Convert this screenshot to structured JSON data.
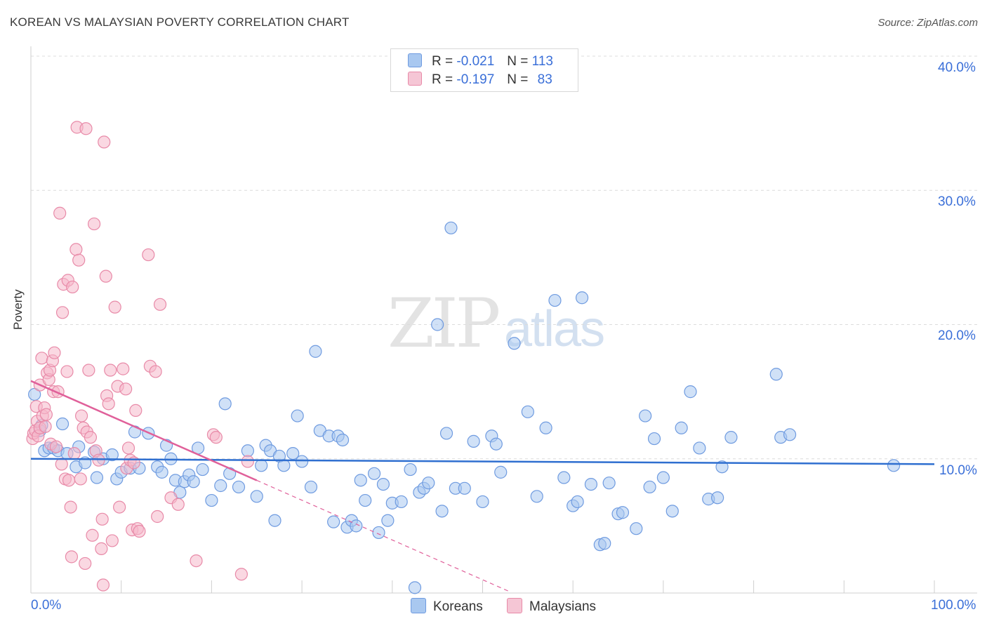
{
  "title": "KOREAN VS MALAYSIAN POVERTY CORRELATION CHART",
  "source": "Source: ZipAtlas.com",
  "watermark": {
    "part1": "ZIP",
    "part2": "atlas"
  },
  "legend_top": [
    {
      "r_label": "R =",
      "r_value": "-0.021",
      "n_label": "N =",
      "n_value": "113"
    },
    {
      "r_label": "R =",
      "r_value": "-0.197",
      "n_label": "N =",
      "n_value": "83"
    }
  ],
  "legend_bottom": {
    "koreans": "Koreans",
    "malaysians": "Malaysians"
  },
  "colors": {
    "koreans_fill": "#a9c8f0",
    "koreans_stroke": "#6f9be0",
    "koreans_line": "#2f6fd0",
    "malaysians_fill": "#f5b8cb",
    "malaysians_stroke": "#e88aa8",
    "malaysians_line": "#e0609a",
    "axis_text": "#3a6fd8"
  },
  "chart_data": {
    "type": "scatter",
    "title": "KOREAN VS MALAYSIAN POVERTY CORRELATION CHART",
    "xlabel": "",
    "ylabel": "Poverty",
    "xlim": [
      0,
      100
    ],
    "ylim": [
      0,
      40
    ],
    "x_tick_labels": {
      "min": "0.0%",
      "max": "100.0%"
    },
    "y_tick_labels": [
      "10.0%",
      "20.0%",
      "30.0%",
      "40.0%"
    ],
    "y_ticks": [
      10,
      20,
      30,
      40
    ],
    "grid": true,
    "series": [
      {
        "name": "Koreans",
        "r": -0.021,
        "n": 113,
        "trend": {
          "x0": 0,
          "y0": 10.0,
          "x1": 100,
          "y1": 9.6,
          "dashed_from": null
        },
        "points": [
          [
            0.4,
            14.8
          ],
          [
            1.0,
            12.1
          ],
          [
            1.2,
            12.5
          ],
          [
            1.5,
            10.6
          ],
          [
            2.0,
            10.8
          ],
          [
            2.5,
            10.8
          ],
          [
            3.0,
            10.6
          ],
          [
            3.5,
            12.6
          ],
          [
            4.0,
            10.4
          ],
          [
            5.0,
            9.4
          ],
          [
            5.3,
            10.9
          ],
          [
            6.0,
            9.7
          ],
          [
            7.0,
            10.5
          ],
          [
            7.3,
            8.6
          ],
          [
            8.0,
            10.0
          ],
          [
            9.0,
            10.3
          ],
          [
            9.5,
            8.5
          ],
          [
            10.0,
            9.0
          ],
          [
            11.0,
            9.3
          ],
          [
            11.5,
            12.0
          ],
          [
            12.0,
            9.3
          ],
          [
            13.0,
            11.9
          ],
          [
            14.0,
            9.4
          ],
          [
            14.5,
            9.0
          ],
          [
            15.0,
            11.0
          ],
          [
            15.5,
            10.0
          ],
          [
            16.0,
            8.4
          ],
          [
            16.5,
            7.5
          ],
          [
            17.0,
            8.3
          ],
          [
            17.5,
            8.8
          ],
          [
            18.0,
            8.3
          ],
          [
            18.5,
            10.8
          ],
          [
            19.0,
            9.2
          ],
          [
            20.0,
            6.9
          ],
          [
            21.0,
            8.0
          ],
          [
            21.5,
            14.1
          ],
          [
            22.0,
            8.9
          ],
          [
            23.0,
            7.9
          ],
          [
            24.0,
            10.6
          ],
          [
            25.0,
            7.2
          ],
          [
            25.5,
            9.5
          ],
          [
            26.0,
            11.0
          ],
          [
            26.5,
            10.6
          ],
          [
            27.0,
            5.4
          ],
          [
            27.5,
            10.2
          ],
          [
            28.0,
            9.5
          ],
          [
            29.0,
            10.4
          ],
          [
            29.5,
            13.2
          ],
          [
            30.0,
            9.8
          ],
          [
            31.0,
            7.9
          ],
          [
            31.5,
            18.0
          ],
          [
            32.0,
            12.1
          ],
          [
            33.0,
            11.7
          ],
          [
            33.5,
            5.3
          ],
          [
            34.0,
            11.7
          ],
          [
            34.5,
            11.4
          ],
          [
            35.0,
            4.9
          ],
          [
            35.5,
            5.4
          ],
          [
            36.0,
            5.0
          ],
          [
            36.5,
            8.4
          ],
          [
            37.0,
            6.9
          ],
          [
            38.0,
            8.9
          ],
          [
            38.5,
            4.5
          ],
          [
            39.0,
            8.1
          ],
          [
            39.5,
            5.4
          ],
          [
            40.0,
            6.7
          ],
          [
            41.0,
            6.8
          ],
          [
            42.0,
            9.2
          ],
          [
            42.5,
            0.4
          ],
          [
            43.0,
            7.5
          ],
          [
            43.5,
            7.8
          ],
          [
            44.0,
            8.2
          ],
          [
            45.0,
            20.0
          ],
          [
            45.5,
            6.1
          ],
          [
            46.0,
            11.9
          ],
          [
            46.5,
            27.2
          ],
          [
            47.0,
            7.8
          ],
          [
            48.0,
            7.8
          ],
          [
            49.0,
            11.3
          ],
          [
            50.0,
            6.8
          ],
          [
            51.0,
            11.7
          ],
          [
            51.5,
            11.1
          ],
          [
            52.0,
            9.0
          ],
          [
            53.5,
            18.6
          ],
          [
            55.0,
            13.5
          ],
          [
            56.0,
            7.2
          ],
          [
            57.0,
            12.3
          ],
          [
            58.0,
            21.8
          ],
          [
            59.0,
            8.6
          ],
          [
            60.0,
            6.5
          ],
          [
            60.5,
            6.8
          ],
          [
            61.0,
            22.0
          ],
          [
            62.0,
            8.1
          ],
          [
            63.0,
            3.6
          ],
          [
            63.5,
            3.7
          ],
          [
            64.0,
            8.2
          ],
          [
            65.0,
            5.9
          ],
          [
            65.5,
            6.0
          ],
          [
            67.0,
            4.8
          ],
          [
            68.0,
            13.2
          ],
          [
            68.5,
            7.9
          ],
          [
            69.0,
            11.5
          ],
          [
            70.0,
            8.6
          ],
          [
            71.0,
            6.1
          ],
          [
            72.0,
            12.3
          ],
          [
            73.0,
            15.0
          ],
          [
            74.0,
            10.8
          ],
          [
            75.0,
            7.0
          ],
          [
            76.0,
            7.1
          ],
          [
            76.5,
            9.4
          ],
          [
            77.5,
            11.6
          ],
          [
            82.5,
            16.3
          ],
          [
            83.0,
            11.6
          ],
          [
            84.0,
            11.8
          ],
          [
            95.5,
            9.5
          ]
        ]
      },
      {
        "name": "Malaysians",
        "r": -0.197,
        "n": 83,
        "trend": {
          "x0": 0,
          "y0": 15.8,
          "x1": 53,
          "y1": 0.1,
          "solid_until": 25
        },
        "points": [
          [
            0.2,
            11.5
          ],
          [
            0.3,
            11.9
          ],
          [
            0.5,
            12.1
          ],
          [
            0.6,
            13.9
          ],
          [
            0.7,
            12.8
          ],
          [
            0.8,
            11.7
          ],
          [
            1.0,
            15.5
          ],
          [
            1.0,
            12.3
          ],
          [
            1.2,
            17.5
          ],
          [
            1.3,
            13.2
          ],
          [
            1.5,
            13.8
          ],
          [
            1.6,
            12.4
          ],
          [
            1.7,
            13.3
          ],
          [
            1.8,
            16.4
          ],
          [
            2.0,
            15.9
          ],
          [
            2.1,
            16.6
          ],
          [
            2.2,
            11.1
          ],
          [
            2.4,
            17.3
          ],
          [
            2.5,
            15.0
          ],
          [
            2.6,
            17.9
          ],
          [
            2.8,
            10.9
          ],
          [
            3.0,
            15.0
          ],
          [
            3.2,
            28.3
          ],
          [
            3.4,
            9.6
          ],
          [
            3.5,
            20.9
          ],
          [
            3.6,
            23.0
          ],
          [
            3.8,
            8.5
          ],
          [
            4.0,
            16.5
          ],
          [
            4.1,
            23.3
          ],
          [
            4.2,
            8.4
          ],
          [
            4.4,
            6.4
          ],
          [
            4.5,
            2.7
          ],
          [
            4.6,
            22.8
          ],
          [
            4.8,
            10.4
          ],
          [
            5.0,
            25.6
          ],
          [
            5.1,
            34.7
          ],
          [
            5.3,
            24.8
          ],
          [
            5.5,
            8.5
          ],
          [
            5.6,
            13.2
          ],
          [
            5.8,
            12.3
          ],
          [
            6.0,
            2.2
          ],
          [
            6.1,
            34.6
          ],
          [
            6.2,
            12.0
          ],
          [
            6.4,
            16.6
          ],
          [
            6.6,
            11.6
          ],
          [
            6.8,
            4.3
          ],
          [
            7.0,
            27.5
          ],
          [
            7.2,
            10.6
          ],
          [
            7.5,
            9.9
          ],
          [
            7.8,
            3.3
          ],
          [
            7.9,
            5.5
          ],
          [
            8.0,
            0.6
          ],
          [
            8.1,
            33.6
          ],
          [
            8.3,
            23.6
          ],
          [
            8.4,
            14.7
          ],
          [
            8.6,
            14.1
          ],
          [
            8.8,
            16.6
          ],
          [
            9.0,
            3.9
          ],
          [
            9.3,
            21.3
          ],
          [
            9.6,
            15.4
          ],
          [
            9.8,
            6.4
          ],
          [
            10.2,
            16.7
          ],
          [
            10.5,
            15.2
          ],
          [
            10.6,
            9.3
          ],
          [
            10.8,
            10.8
          ],
          [
            11.0,
            9.9
          ],
          [
            11.2,
            4.7
          ],
          [
            11.4,
            9.7
          ],
          [
            11.6,
            13.6
          ],
          [
            11.8,
            4.8
          ],
          [
            12.0,
            4.6
          ],
          [
            13.0,
            25.2
          ],
          [
            13.2,
            16.9
          ],
          [
            13.8,
            16.5
          ],
          [
            14.0,
            5.7
          ],
          [
            14.3,
            21.5
          ],
          [
            15.5,
            7.1
          ],
          [
            16.3,
            6.6
          ],
          [
            18.3,
            2.4
          ],
          [
            20.2,
            11.8
          ],
          [
            20.5,
            11.6
          ],
          [
            23.3,
            1.4
          ],
          [
            24.0,
            9.8
          ]
        ]
      }
    ]
  }
}
